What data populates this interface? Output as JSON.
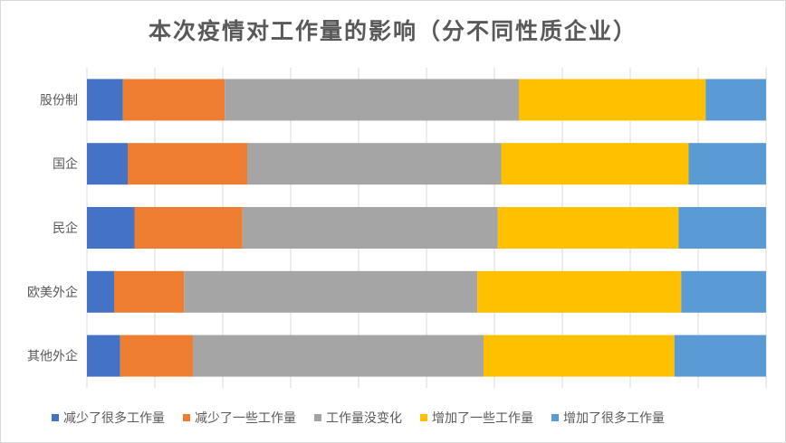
{
  "chart_data": {
    "type": "bar",
    "orientation": "horizontal",
    "stacked": "100%",
    "title": "本次疫情对工作量的影响（分不同性质企业）",
    "categories": [
      "股份制",
      "国企",
      "民企",
      "欧美外企",
      "其他外企"
    ],
    "series": [
      {
        "name": "减少了很多工作量",
        "color": "#4472c4",
        "values": [
          5.3,
          6.0,
          7.0,
          4.0,
          4.9
        ]
      },
      {
        "name": "减少了一些工作量",
        "color": "#ed7d31",
        "values": [
          15.0,
          17.6,
          15.9,
          10.3,
          10.7
        ]
      },
      {
        "name": "工作量没变化",
        "color": "#a5a5a5",
        "values": [
          43.3,
          37.4,
          37.6,
          43.2,
          42.8
        ]
      },
      {
        "name": "增加了一些工作量",
        "color": "#ffc000",
        "values": [
          27.5,
          27.6,
          26.6,
          30.0,
          28.1
        ]
      },
      {
        "name": "增加了很多工作量",
        "color": "#5b9bd5",
        "values": [
          8.9,
          11.4,
          12.9,
          12.5,
          13.5
        ]
      }
    ],
    "xlim": [
      0,
      100
    ],
    "grid": true,
    "legend_position": "bottom"
  }
}
